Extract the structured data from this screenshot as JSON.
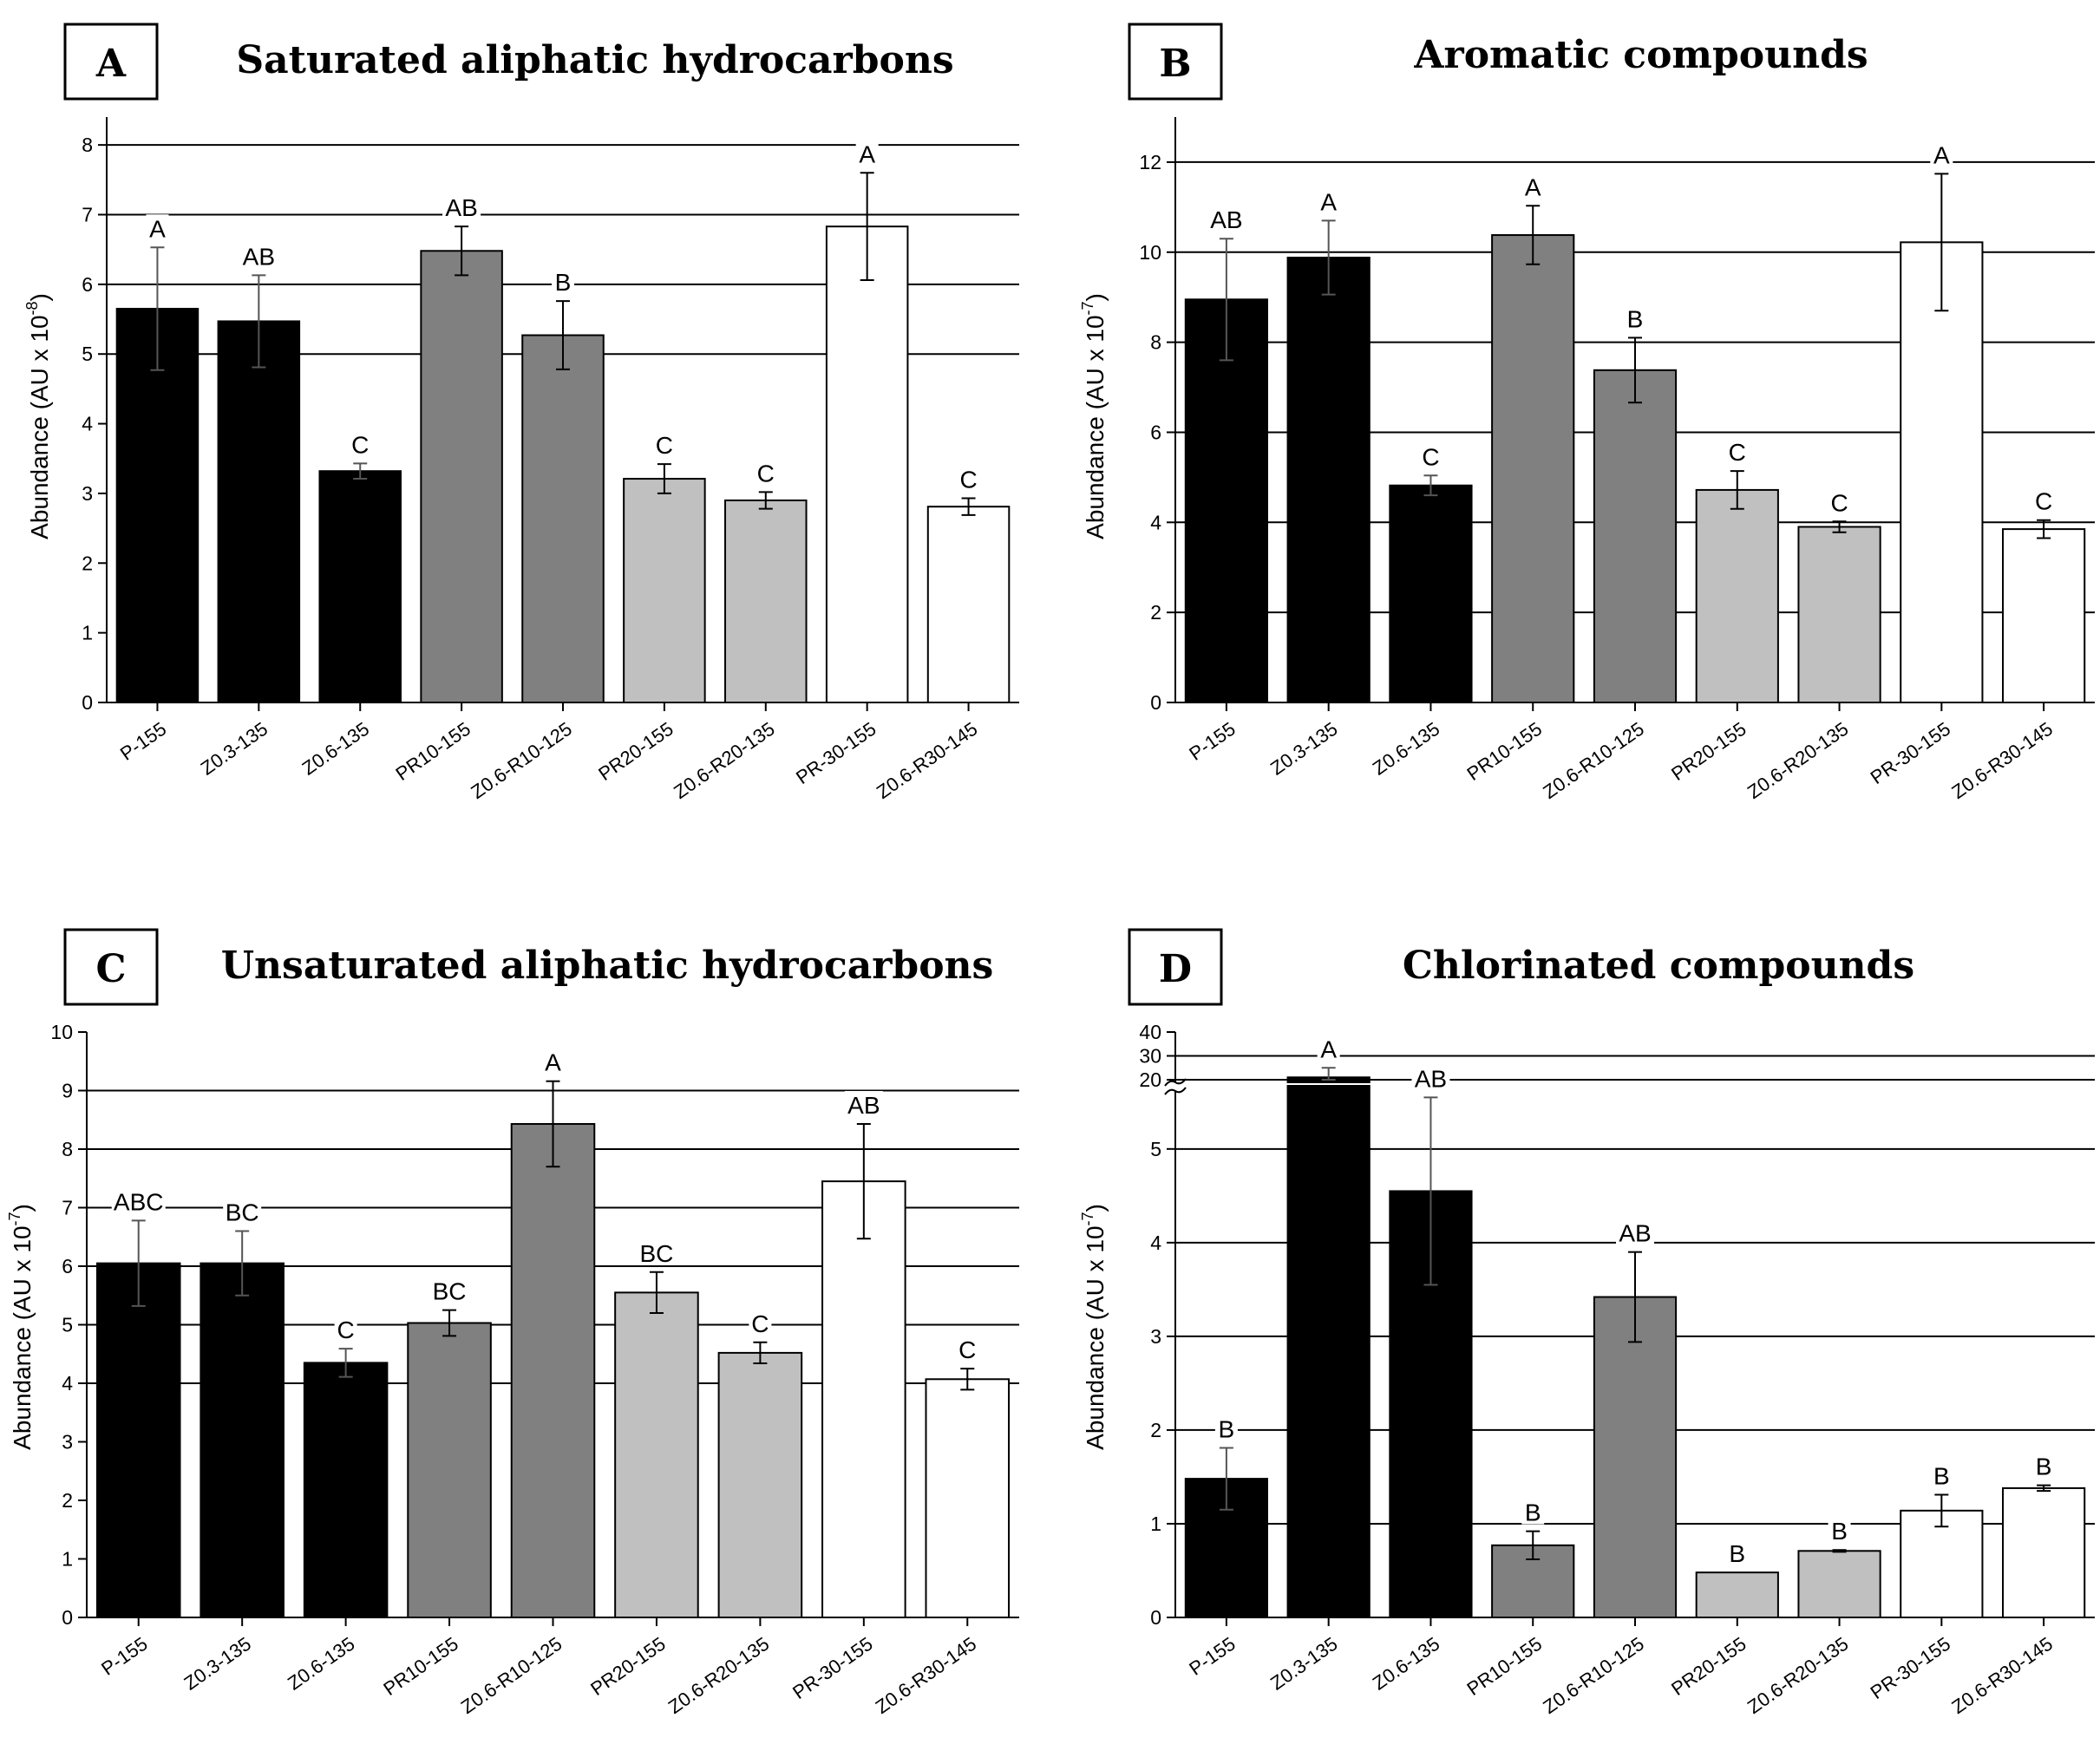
{
  "chart_data": [
    {
      "panel": "A",
      "type": "bar",
      "title": "Saturated aliphatic hydrocarbons",
      "ylabel": "Abundance (AU x 10",
      "ylabel_exp": "-8",
      "ylabel_end": ")",
      "ylim": [
        0,
        8.4
      ],
      "yticks": [
        0,
        1,
        2,
        3,
        4,
        5,
        6,
        7,
        8
      ],
      "gridlines": [
        5,
        6,
        7,
        8
      ],
      "categories": [
        "P-155",
        "Z0.3-135",
        "Z0.6-135",
        "PR10-155",
        "Z0.6-R10-125",
        "PR20-155",
        "Z0.6-R20-135",
        "PR-30-155",
        "Z0.6-R30-145"
      ],
      "values": [
        5.65,
        5.47,
        3.32,
        6.48,
        5.27,
        3.21,
        2.9,
        6.83,
        2.81
      ],
      "errors": [
        0.88,
        0.66,
        0.11,
        0.35,
        0.49,
        0.21,
        0.12,
        0.77,
        0.12
      ],
      "labels": [
        "A",
        "AB",
        "C",
        "AB",
        "B",
        "C",
        "C",
        "A",
        "C"
      ],
      "colors": [
        "#000000",
        "#000000",
        "#000000",
        "#808080",
        "#808080",
        "#c0c0c0",
        "#c0c0c0",
        "#ffffff",
        "#ffffff"
      ]
    },
    {
      "panel": "B",
      "type": "bar",
      "title": "Aromatic compounds",
      "ylabel": "Abundance (AU x 10",
      "ylabel_exp": "-7",
      "ylabel_end": ")",
      "ylim": [
        0,
        13
      ],
      "yticks": [
        0,
        2,
        4,
        6,
        8,
        10,
        12
      ],
      "gridlines": [
        2,
        4,
        6,
        8,
        10,
        12
      ],
      "categories": [
        "P-155",
        "Z0.3-135",
        "Z0.6-135",
        "PR10-155",
        "Z0.6-R10-125",
        "PR20-155",
        "Z0.6-R20-135",
        "PR-30-155",
        "Z0.6-R30-145"
      ],
      "values": [
        8.95,
        9.88,
        4.82,
        10.38,
        7.38,
        4.72,
        3.9,
        10.22,
        3.85
      ],
      "errors": [
        1.35,
        0.82,
        0.22,
        0.65,
        0.72,
        0.42,
        0.12,
        1.52,
        0.2
      ],
      "labels": [
        "AB",
        "A",
        "C",
        "A",
        "B",
        "C",
        "C",
        "A",
        "C"
      ],
      "colors": [
        "#000000",
        "#000000",
        "#000000",
        "#808080",
        "#808080",
        "#c0c0c0",
        "#c0c0c0",
        "#ffffff",
        "#ffffff"
      ]
    },
    {
      "panel": "C",
      "type": "bar",
      "title": "Unsaturated aliphatic hydrocarbons",
      "ylabel": "Abundance (AU x 10",
      "ylabel_exp": "-7",
      "ylabel_end": ")",
      "ylim": [
        0,
        10
      ],
      "yticks": [
        0,
        1,
        2,
        3,
        4,
        5,
        6,
        7,
        8,
        9,
        10
      ],
      "gridlines": [
        4,
        5,
        6,
        7,
        8,
        9
      ],
      "categories": [
        "P-155",
        "Z0.3-135",
        "Z0.6-135",
        "PR10-155",
        "Z0.6-R10-125",
        "PR20-155",
        "Z0.6-R20-135",
        "PR-30-155",
        "Z0.6-R30-145"
      ],
      "values": [
        6.05,
        6.05,
        4.35,
        5.03,
        8.43,
        5.55,
        4.52,
        7.45,
        4.07
      ],
      "errors": [
        0.73,
        0.55,
        0.24,
        0.22,
        0.73,
        0.35,
        0.18,
        0.98,
        0.18
      ],
      "labels": [
        "ABC",
        "BC",
        "C",
        "BC",
        "A",
        "BC",
        "C",
        "AB",
        "C"
      ],
      "colors": [
        "#000000",
        "#000000",
        "#000000",
        "#808080",
        "#808080",
        "#c0c0c0",
        "#c0c0c0",
        "#ffffff",
        "#ffffff"
      ]
    },
    {
      "panel": "D",
      "type": "bar",
      "title": "Chlorinated compounds",
      "ylabel": "Abundance (AU x 10",
      "ylabel_exp": "-7",
      "ylabel_end": ")",
      "ylim": [
        0,
        40
      ],
      "axis_break": [
        5.6,
        20
      ],
      "yticks_lower": [
        0,
        1,
        2,
        3,
        4,
        5
      ],
      "yticks_upper": [
        20,
        30,
        40
      ],
      "gridlines_lower": [
        1,
        2,
        3,
        4,
        5
      ],
      "gridlines_upper": [
        20,
        30
      ],
      "categories": [
        "P-155",
        "Z0.3-135",
        "Z0.6-135",
        "PR10-155",
        "Z0.6-R10-125",
        "PR20-155",
        "Z0.6-R20-135",
        "PR-30-155",
        "Z0.6-R30-145"
      ],
      "values": [
        1.48,
        21.0,
        4.55,
        0.77,
        3.42,
        0.48,
        0.71,
        1.14,
        1.38
      ],
      "errors": [
        0.33,
        4.0,
        1.0,
        0.15,
        0.48,
        0.0,
        0.01,
        0.17,
        0.03
      ],
      "labels": [
        "B",
        "A",
        "AB",
        "B",
        "AB",
        "B",
        "B",
        "B",
        "B"
      ],
      "colors": [
        "#000000",
        "#000000",
        "#000000",
        "#808080",
        "#808080",
        "#c0c0c0",
        "#c0c0c0",
        "#ffffff",
        "#ffffff"
      ]
    }
  ]
}
